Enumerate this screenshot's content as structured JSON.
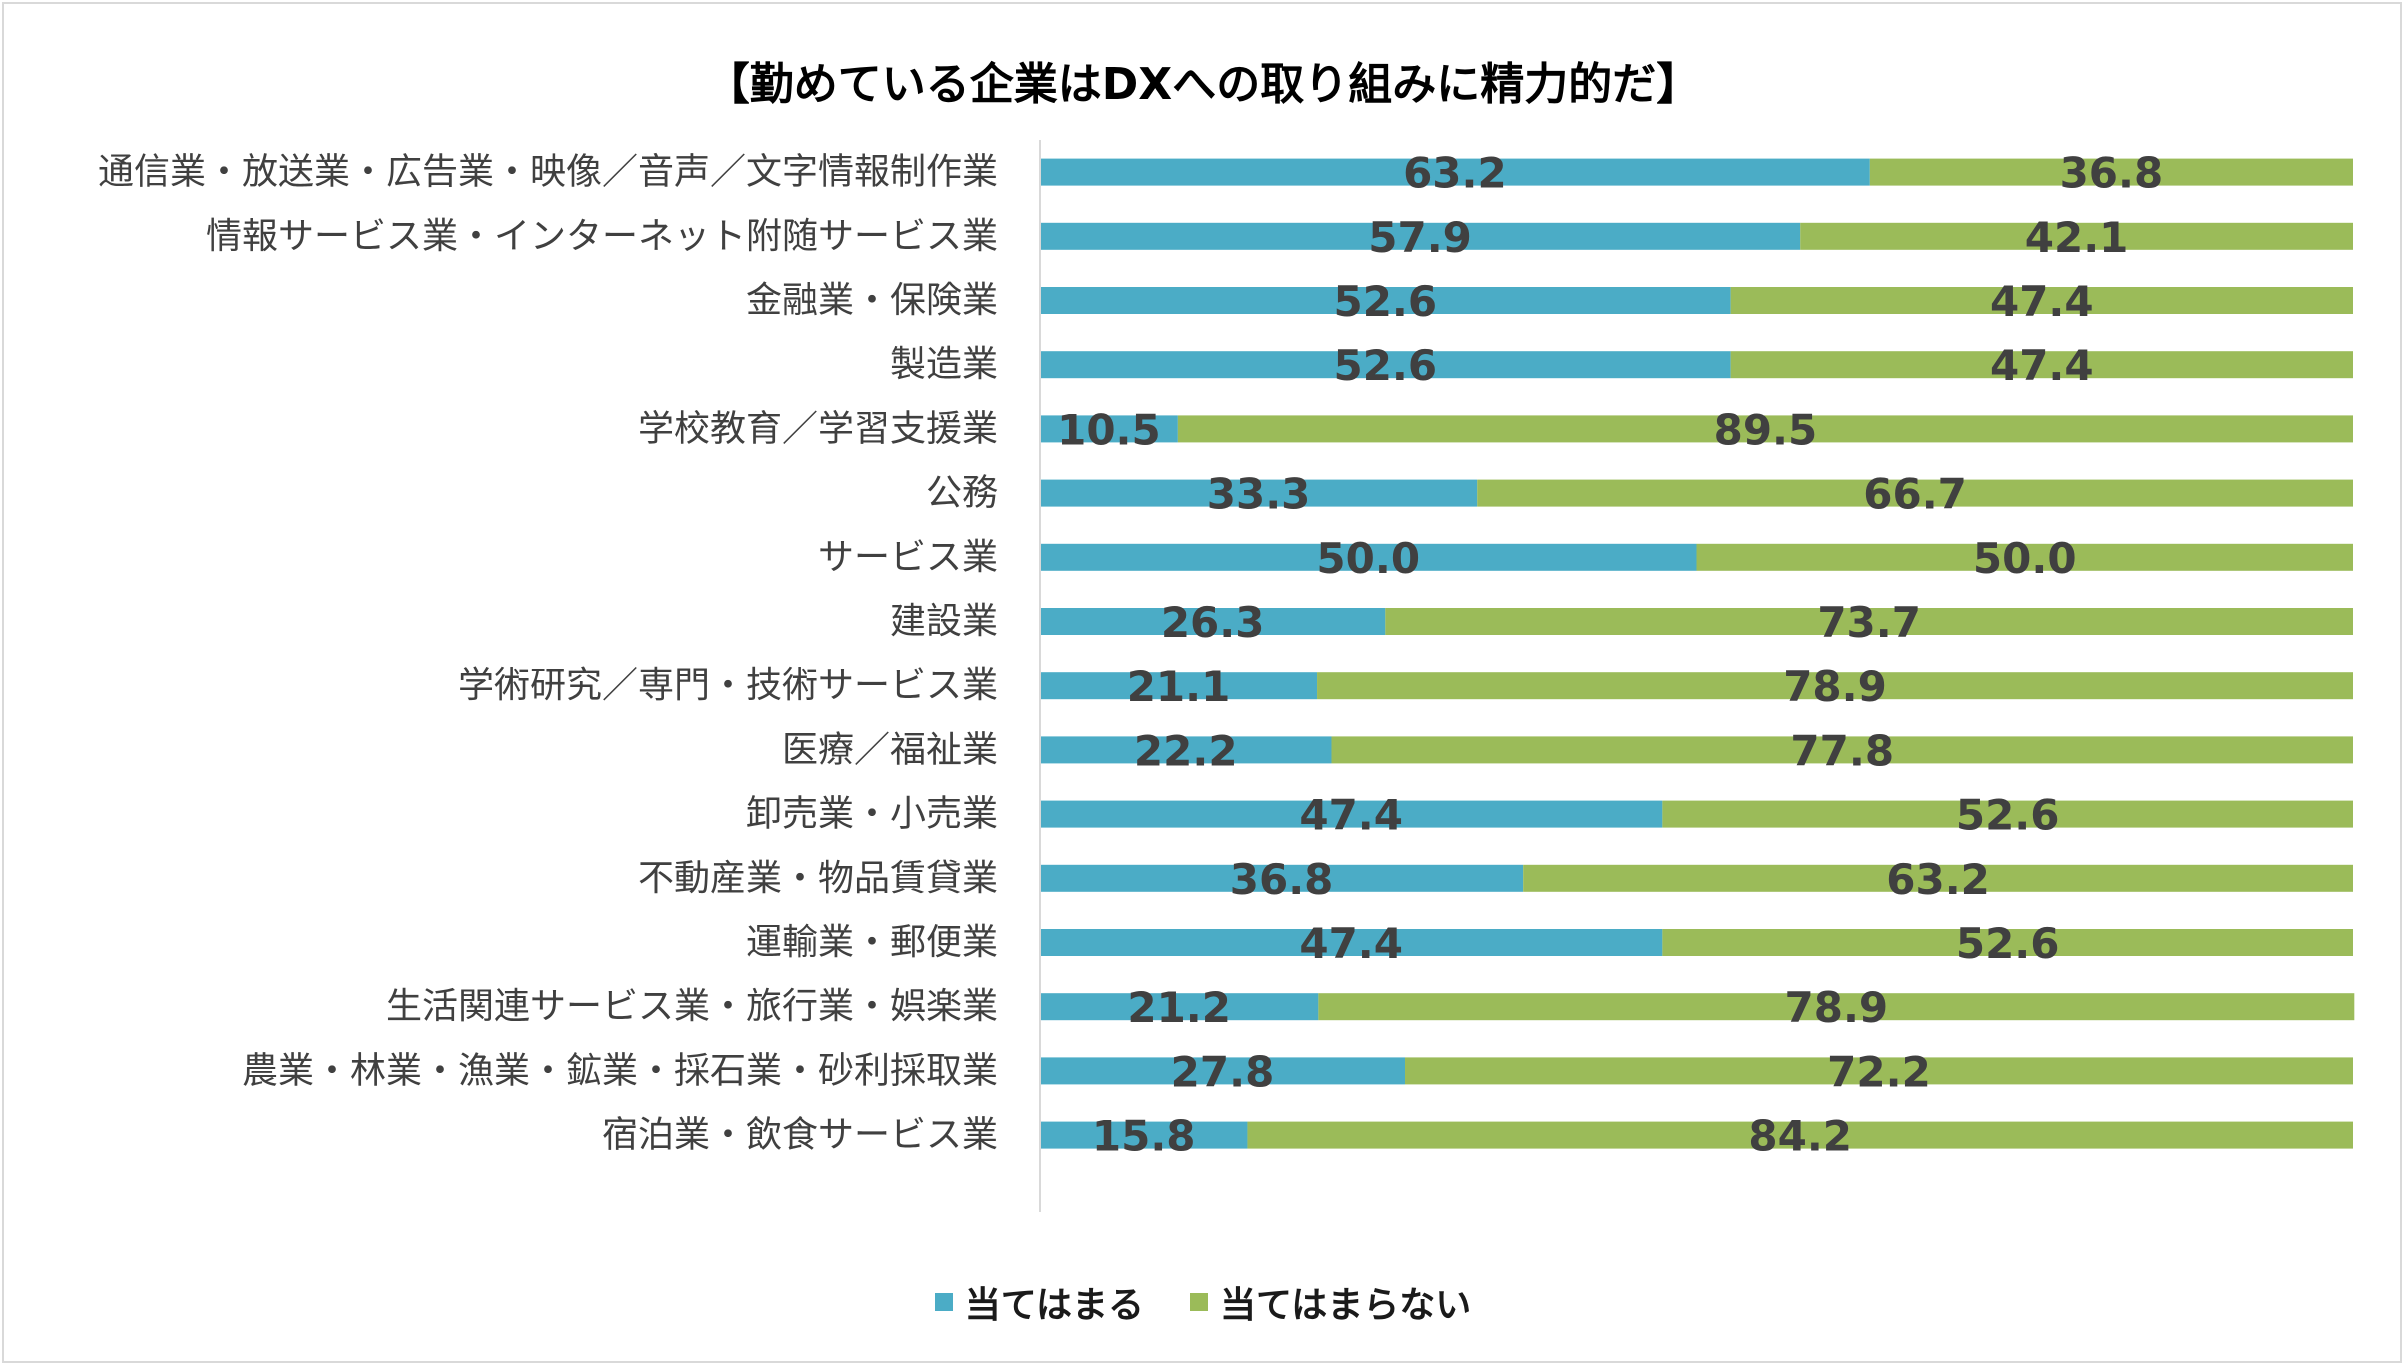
{
  "chart_data": {
    "type": "bar",
    "orientation": "horizontal",
    "stacked": true,
    "title": "【勤めている企業はDXへの取り組みに精力的だ】",
    "categories": [
      "通信業・放送業・広告業・映像／音声／文字情報制作業",
      "情報サービス業・インターネット附随サービス業",
      "金融業・保険業",
      "製造業",
      "学校教育／学習支援業",
      "公務",
      "サービス業",
      "建設業",
      "学術研究／専門・技術サービス業",
      "医療／福祉業",
      "卸売業・小売業",
      "不動産業・物品賃貸業",
      "運輸業・郵便業",
      "生活関連サービス業・旅行業・娯楽業",
      "農業・林業・漁業・鉱業・採石業・砂利採取業",
      "宿泊業・飲食サービス業"
    ],
    "series": [
      {
        "name": "当てはまる",
        "color": "#4bacc6",
        "values": [
          63.2,
          57.9,
          52.6,
          52.6,
          10.5,
          33.3,
          50.0,
          26.3,
          21.1,
          22.2,
          47.4,
          36.8,
          47.4,
          21.2,
          27.8,
          15.8
        ],
        "labels": [
          "63.2",
          "57.9",
          "52.6",
          "52.6",
          "10.5",
          "33.3",
          "50.0",
          "26.3",
          "21.1",
          "22.2",
          "47.4",
          "36.8",
          "47.4",
          "21.2",
          "27.8",
          "15.8"
        ]
      },
      {
        "name": "当てはまらない",
        "color": "#9bbb59",
        "values": [
          36.8,
          42.1,
          47.4,
          47.4,
          89.5,
          66.7,
          50.0,
          73.7,
          78.9,
          77.8,
          52.6,
          63.2,
          52.6,
          78.9,
          72.2,
          84.2
        ],
        "labels": [
          "36.8",
          "42.1",
          "47.4",
          "47.4",
          "89.5",
          "66.7",
          "50.0",
          "73.7",
          "78.9",
          "77.8",
          "52.6",
          "63.2",
          "52.6",
          "78.9",
          "72.2",
          "84.2"
        ]
      }
    ],
    "xlim": [
      0,
      100
    ],
    "legend": "bottom",
    "grid": false
  }
}
